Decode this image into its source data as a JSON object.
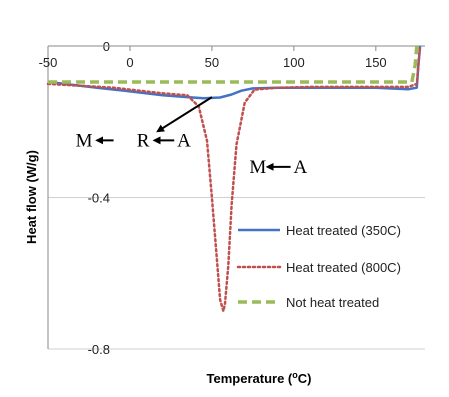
{
  "chart_data": {
    "type": "line",
    "xlabel": "Temperature (°C)",
    "xlabel_main": "Temperature (",
    "xlabel_sup": "o",
    "xlabel_end": "C)",
    "ylabel": "Heat flow (W/g)",
    "xlim": [
      -50,
      180
    ],
    "ylim": [
      -0.8,
      0
    ],
    "xticks": [
      -50,
      0,
      50,
      100,
      150
    ],
    "yticks": [
      0,
      -0.4,
      -0.8
    ],
    "ytick_labels": [
      "0",
      "-0.4",
      "-0.8"
    ],
    "legend_position": "right",
    "series": [
      {
        "name": "Heat treated (350C)",
        "color": "#4472C4",
        "dash": "solid",
        "x": [
          -50,
          -40,
          -20,
          0,
          20,
          35,
          45,
          55,
          62,
          68,
          75,
          90,
          110,
          130,
          150,
          170,
          175,
          176,
          177
        ],
        "y": [
          -0.095,
          -0.1,
          -0.11,
          -0.12,
          -0.13,
          -0.135,
          -0.138,
          -0.136,
          -0.128,
          -0.118,
          -0.112,
          -0.11,
          -0.11,
          -0.11,
          -0.11,
          -0.114,
          -0.11,
          -0.05,
          0.0
        ]
      },
      {
        "name": "Heat treated (800C)",
        "color": "#C0504D",
        "dash": "dotted",
        "x": [
          -50,
          -30,
          -10,
          0,
          20,
          35,
          42,
          47,
          50,
          53,
          55,
          57,
          58,
          60,
          62,
          65,
          70,
          76,
          90,
          110,
          130,
          150,
          170,
          175,
          176,
          177
        ],
        "y": [
          -0.1,
          -0.105,
          -0.11,
          -0.115,
          -0.125,
          -0.13,
          -0.16,
          -0.25,
          -0.4,
          -0.56,
          -0.67,
          -0.7,
          -0.68,
          -0.58,
          -0.42,
          -0.26,
          -0.15,
          -0.115,
          -0.11,
          -0.108,
          -0.108,
          -0.108,
          -0.108,
          -0.1,
          -0.05,
          0.0
        ]
      },
      {
        "name": "Not heat treated",
        "color": "#9BBB59",
        "dash": "dashed",
        "x": [
          -50,
          -20,
          0,
          50,
          100,
          150,
          172,
          174,
          175
        ],
        "y": [
          -0.095,
          -0.095,
          -0.095,
          -0.095,
          -0.095,
          -0.095,
          -0.095,
          -0.05,
          0.0
        ]
      }
    ],
    "annotations": [
      {
        "label": "M",
        "x": -28,
        "y": -0.265
      },
      {
        "label": "R",
        "x": 8,
        "y": -0.265
      },
      {
        "label": "A",
        "x": 33,
        "y": -0.265
      },
      {
        "label": "M",
        "x": 78,
        "y": -0.335
      },
      {
        "label": "A",
        "x": 104,
        "y": -0.335
      }
    ]
  }
}
